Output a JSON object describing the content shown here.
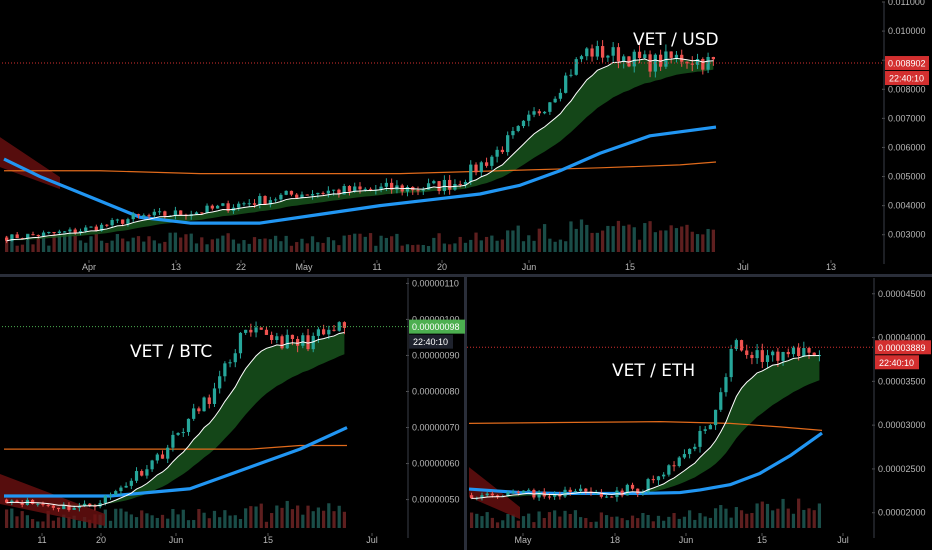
{
  "colors": {
    "background": "#000000",
    "divider": "#2a2e39",
    "up": "#26a69a",
    "down": "#ef5350",
    "ma_fast": "#ffffff",
    "ma_slow": "#2196f3",
    "ma_long": "#e06a1b",
    "ribbon_up": "#1b5e20",
    "ribbon_down": "#6b1010",
    "volume_up": "#1e5a55",
    "volume_down": "#6e2424",
    "tag_red": "#d32f2f",
    "tag_green": "#4caf50",
    "tag_dark": "#1e222d"
  },
  "chart_data": [
    {
      "type": "candlestick",
      "title": "VET / USD",
      "x_ticks": [
        "Apr",
        "13",
        "22",
        "May",
        "11",
        "20",
        "Jun",
        "15",
        "Jul",
        "13"
      ],
      "y_ticks": [
        "0.011000",
        "0.010000",
        "0.009000",
        "0.008000",
        "0.007000",
        "0.006000",
        "0.005000",
        "0.004000",
        "0.003000"
      ],
      "ylim": [
        0.0022,
        0.011
      ],
      "last_price": "0.008902",
      "countdown": "22:40:10",
      "keypoints": [
        0.0029,
        0.003,
        0.0031,
        0.0033,
        0.0036,
        0.0037,
        0.0038,
        0.004,
        0.0042,
        0.0044,
        0.0045,
        0.0045,
        0.0046,
        0.0046,
        0.0048,
        0.0056,
        0.0066,
        0.0078,
        0.0093,
        0.0092,
        0.0089,
        0.0091,
        0.0089
      ],
      "ma_slow": [
        0.0056,
        0.005,
        0.0043,
        0.0036,
        0.0034,
        0.0034,
        0.0037,
        0.004,
        0.0042,
        0.0044,
        0.0047,
        0.0052,
        0.0058,
        0.0064,
        0.0067
      ],
      "ma_long": [
        0.0052,
        0.0052,
        0.0051,
        0.0051,
        0.0051,
        0.0052,
        0.0053,
        0.0054,
        0.0055
      ]
    },
    {
      "type": "candlestick",
      "title": "VET / BTC",
      "x_ticks": [
        "11",
        "20",
        "Jun",
        "15",
        "Jul"
      ],
      "y_ticks": [
        "0.00000110",
        "0.00000100",
        "0.00000090",
        "0.00000080",
        "0.00000070",
        "0.00000060",
        "0.00000050"
      ],
      "ylim": [
        4.1e-07,
        1.115e-06
      ],
      "last_price": "0.00000098",
      "countdown": "22:40:10",
      "keypoints": [
        5e-07,
        4.9e-07,
        4.8e-07,
        4.8e-07,
        5.1e-07,
        5.7e-07,
        6.3e-07,
        7.2e-07,
        8e-07,
        9.5e-07,
        9.6e-07,
        9.3e-07,
        9.5e-07,
        9.8e-07
      ],
      "ma_slow": [
        5.1e-07,
        5.1e-07,
        5.1e-07,
        5.2e-07,
        5.3e-07,
        5.7e-07,
        6e-07,
        6.4e-07,
        7e-07
      ],
      "ma_long": [
        6.4e-07,
        6.4e-07,
        6.4e-07,
        6.4e-07,
        6.5e-07,
        6.5e-07
      ]
    },
    {
      "type": "candlestick",
      "title": "VET / ETH",
      "x_ticks": [
        "May",
        "18",
        "Jun",
        "15",
        "Jul"
      ],
      "y_ticks": [
        "0.00004500",
        "0.00004000",
        "0.00003500",
        "0.00003000",
        "0.00002500",
        "0.00002000"
      ],
      "ylim": [
        1.78e-05,
        4.68e-05
      ],
      "last_price": "0.00003889",
      "countdown": "22:40:10",
      "keypoints": [
        2.2e-05,
        2.22e-05,
        2.23e-05,
        2.21e-05,
        2.22e-05,
        2.24e-05,
        2.23e-05,
        2.25e-05,
        2.3e-05,
        2.48e-05,
        2.7e-05,
        3e-05,
        3.9e-05,
        3.8e-05,
        3.75e-05,
        3.82e-05,
        3.89e-05
      ],
      "ma_slow": [
        2.27e-05,
        2.23e-05,
        2.22e-05,
        2.22e-05,
        2.22e-05,
        2.23e-05,
        2.26e-05,
        2.32e-05,
        2.45e-05,
        2.65e-05,
        2.91e-05
      ],
      "ma_long": [
        3.02e-05,
        3.03e-05,
        3.04e-05,
        3.02e-05,
        2.98e-05,
        2.94e-05
      ]
    }
  ]
}
